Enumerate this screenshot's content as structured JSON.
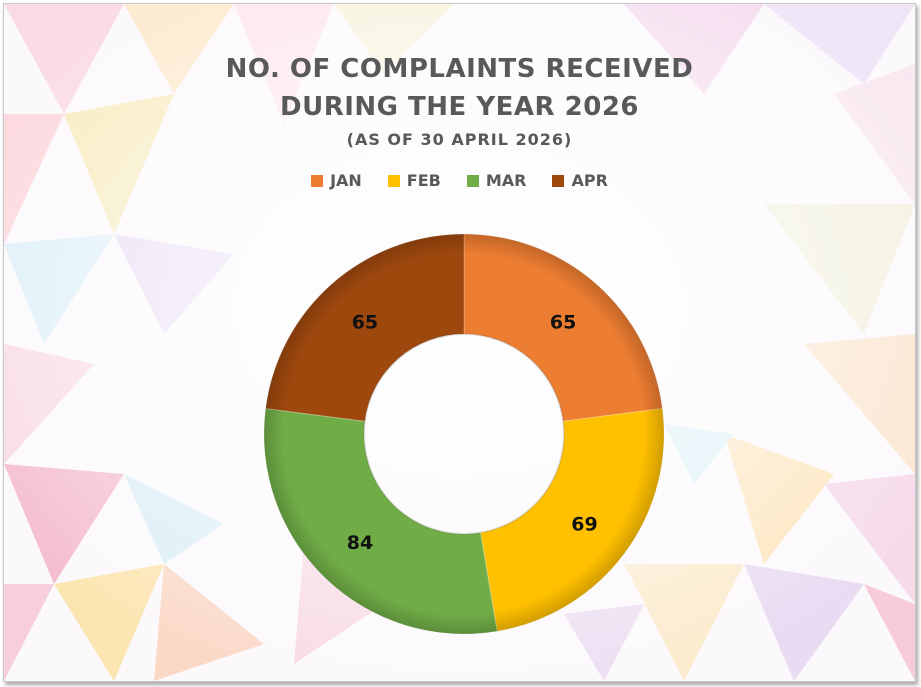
{
  "chart_data": {
    "type": "pie",
    "subtype": "donut",
    "title_line1": "NO. OF COMPLAINTS RECEIVED",
    "title_line2": "DURING THE YEAR 2026",
    "subtitle": "(AS OF 30 APRIL 2026)",
    "legend_position": "top",
    "categories": [
      "JAN",
      "FEB",
      "MAR",
      "APR"
    ],
    "values": [
      65,
      69,
      84,
      65
    ],
    "colors": [
      "#ED7D31",
      "#FFC000",
      "#70AD47",
      "#9E480E"
    ],
    "data_labels": [
      "65",
      "69",
      "84",
      "65"
    ]
  }
}
